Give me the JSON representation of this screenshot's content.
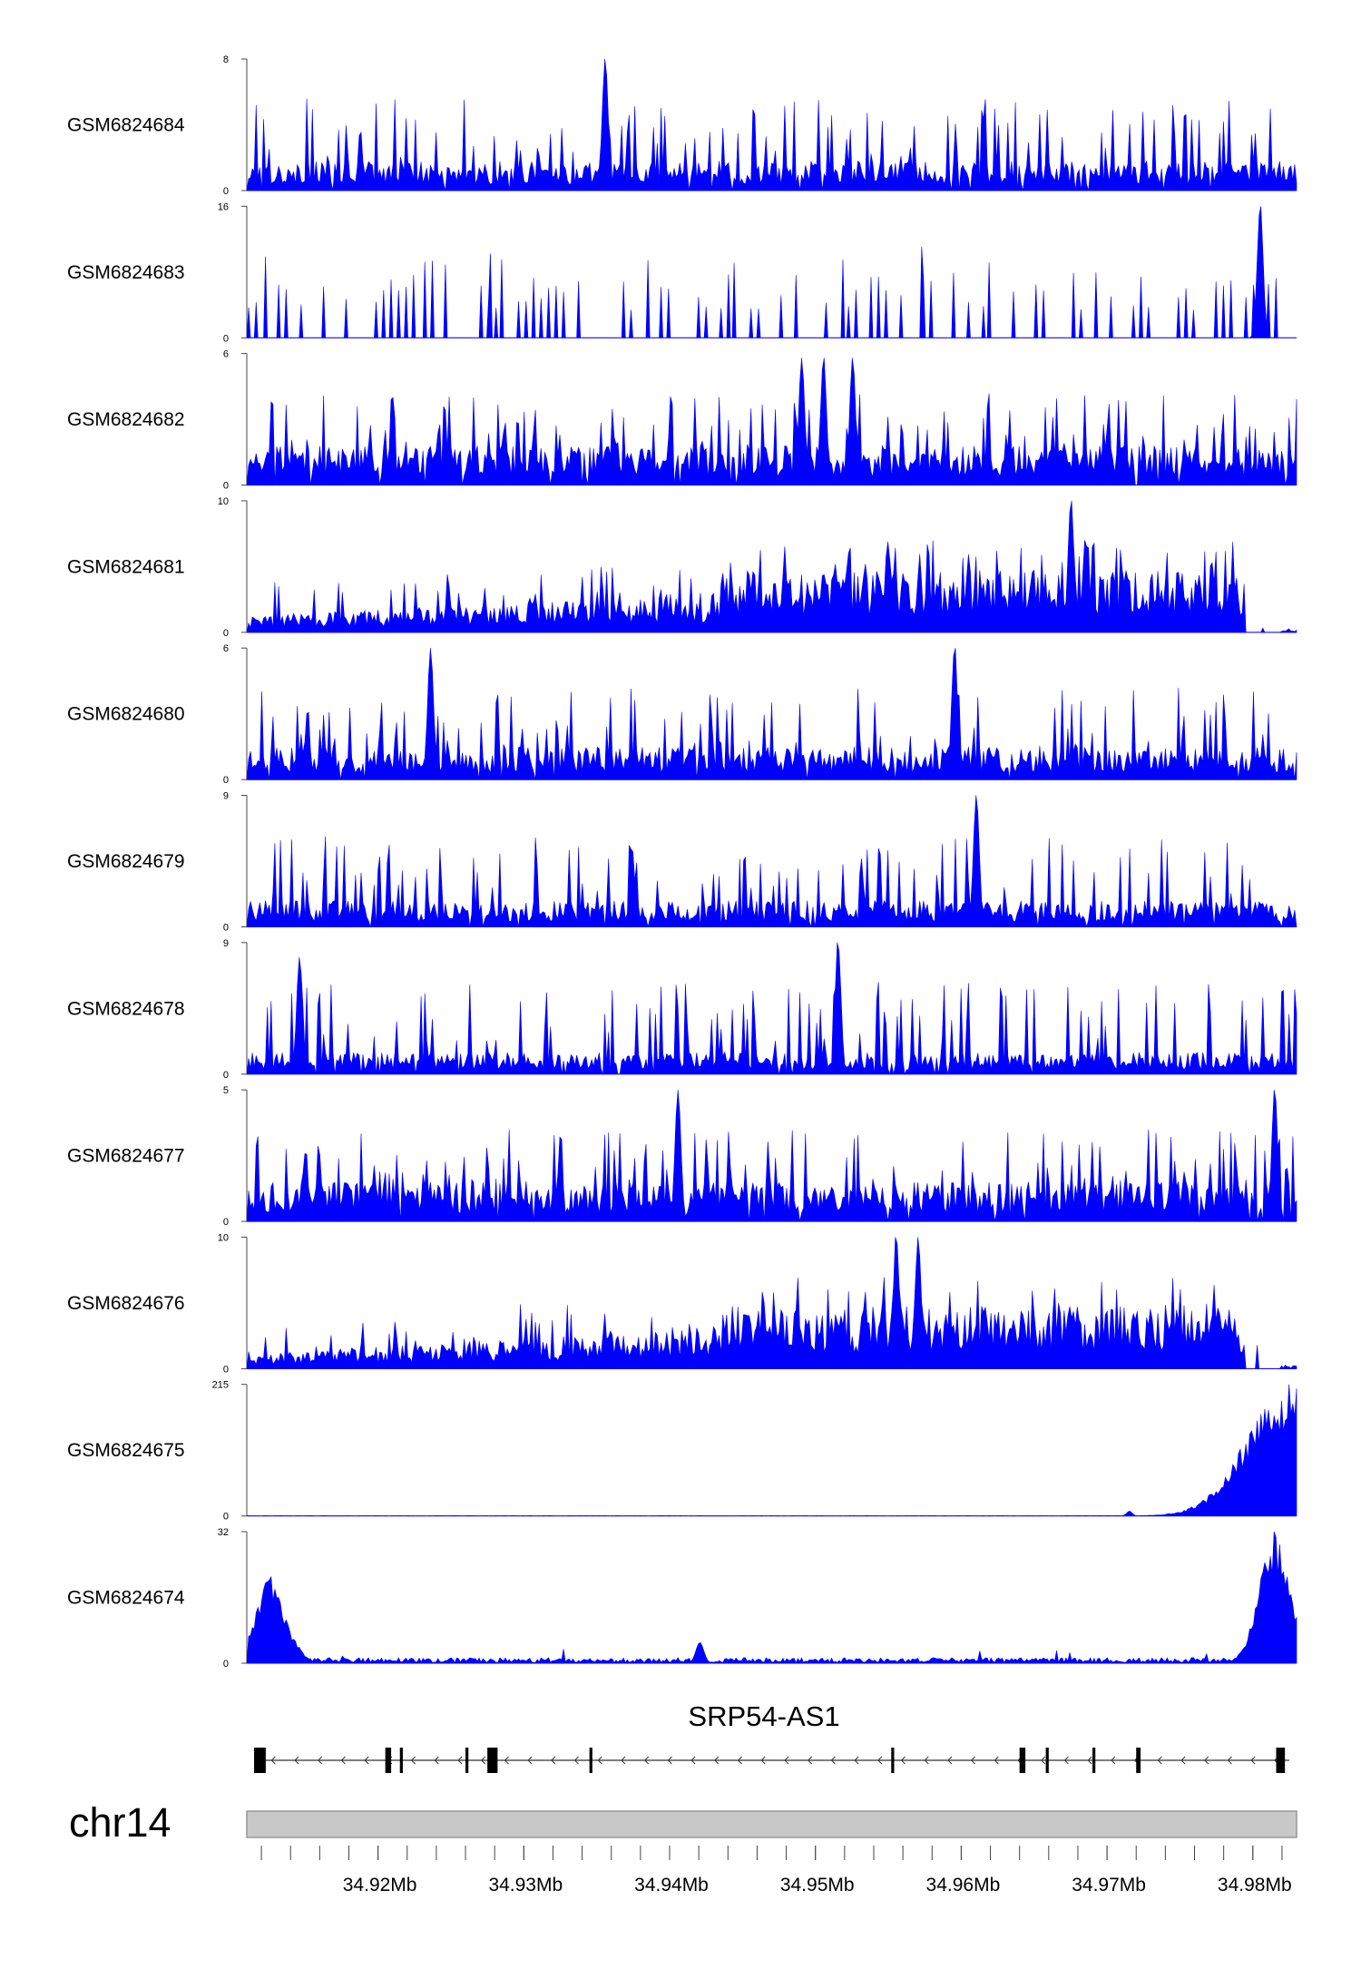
{
  "chart_data": {
    "type": "area",
    "fill_color": "#0000ff",
    "genomic_range": [
      34.911,
      34.983
    ],
    "x_unit": "Mb",
    "tracks": [
      {
        "name": "GSM6824684",
        "ymax": 8,
        "ymin": 0,
        "ymax_label": "8",
        "ymin_label": "0",
        "profile": "spiky",
        "baseline": 1.2,
        "peaks": [
          [
            34.9355,
            8
          ]
        ]
      },
      {
        "name": "GSM6824683",
        "ymax": 16,
        "ymin": 0,
        "ymax_label": "16",
        "ymin_label": "0",
        "profile": "sparse-spiky",
        "baseline": 0,
        "peaks": [
          [
            34.9805,
            16
          ]
        ]
      },
      {
        "name": "GSM6824682",
        "ymax": 6,
        "ymin": 0,
        "ymax_label": "6",
        "ymin_label": "0",
        "profile": "spiky",
        "baseline": 1.2,
        "peaks": [
          [
            34.949,
            5.8
          ],
          [
            34.9505,
            5.8
          ],
          [
            34.9525,
            5.8
          ]
        ]
      },
      {
        "name": "GSM6824681",
        "ymax": 10,
        "ymin": 0,
        "ymax_label": "10",
        "ymin_label": "0",
        "profile": "rising",
        "baseline": 0.4,
        "peaks": [
          [
            34.9675,
            10
          ],
          [
            34.9685,
            7
          ]
        ]
      },
      {
        "name": "GSM6824680",
        "ymax": 6,
        "ymin": 0,
        "ymax_label": "6",
        "ymin_label": "0",
        "profile": "spiky",
        "baseline": 1.0,
        "peaks": [
          [
            34.9235,
            6
          ],
          [
            34.9595,
            6
          ]
        ]
      },
      {
        "name": "GSM6824679",
        "ymax": 9,
        "ymin": 0,
        "ymax_label": "9",
        "ymin_label": "0",
        "profile": "spiky",
        "baseline": 1.2,
        "peaks": [
          [
            34.961,
            9
          ]
        ]
      },
      {
        "name": "GSM6824678",
        "ymax": 9,
        "ymin": 0,
        "ymax_label": "9",
        "ymin_label": "0",
        "profile": "spiky",
        "baseline": 1.0,
        "peaks": [
          [
            34.9145,
            8
          ],
          [
            34.9515,
            9
          ]
        ]
      },
      {
        "name": "GSM6824677",
        "ymax": 5,
        "ymin": 0,
        "ymax_label": "5",
        "ymin_label": "0",
        "profile": "spiky",
        "baseline": 1.0,
        "peaks": [
          [
            34.9405,
            5
          ],
          [
            34.9815,
            5
          ]
        ]
      },
      {
        "name": "GSM6824676",
        "ymax": 10,
        "ymin": 0,
        "ymax_label": "10",
        "ymin_label": "0",
        "profile": "rising",
        "baseline": 0.5,
        "peaks": [
          [
            34.9555,
            10
          ],
          [
            34.957,
            10
          ]
        ]
      },
      {
        "name": "GSM6824675",
        "ymax": 215,
        "ymin": 0,
        "ymax_label": "215",
        "ymin_label": "0",
        "profile": "flat-end-peak",
        "baseline": 0.5,
        "peaks": [
          [
            34.9715,
            8
          ],
          [
            34.9825,
            215
          ]
        ]
      },
      {
        "name": "GSM6824674",
        "ymax": 32,
        "ymin": 0,
        "ymax_label": "32",
        "ymin_label": "0",
        "profile": "flat-two-peaks",
        "baseline": 0.8,
        "peaks": [
          [
            34.9125,
            21
          ],
          [
            34.942,
            5
          ],
          [
            34.9815,
            32
          ]
        ]
      }
    ],
    "gene": {
      "name": "SRP54-AS1",
      "strand": "-",
      "start": 34.9115,
      "end": 34.9825,
      "exons": [
        [
          34.9115,
          34.9123
        ],
        [
          34.9205,
          34.9209
        ],
        [
          34.9215,
          34.9217
        ],
        [
          34.926,
          34.9262
        ],
        [
          34.9275,
          34.9282
        ],
        [
          34.9345,
          34.9347
        ],
        [
          34.9552,
          34.9554
        ],
        [
          34.964,
          34.9644
        ],
        [
          34.9658,
          34.966
        ],
        [
          34.969,
          34.9692
        ],
        [
          34.972,
          34.9723
        ],
        [
          34.9816,
          34.9822
        ]
      ]
    },
    "chromosome": "chr14",
    "x_tick_labels": [
      "34.92Mb",
      "34.93Mb",
      "34.94Mb",
      "34.95Mb",
      "34.96Mb",
      "34.97Mb",
      "34.98Mb"
    ],
    "x_ticks": [
      34.92,
      34.93,
      34.94,
      34.95,
      34.96,
      34.97,
      34.98
    ],
    "x_minor_tick_step": 0.002
  }
}
